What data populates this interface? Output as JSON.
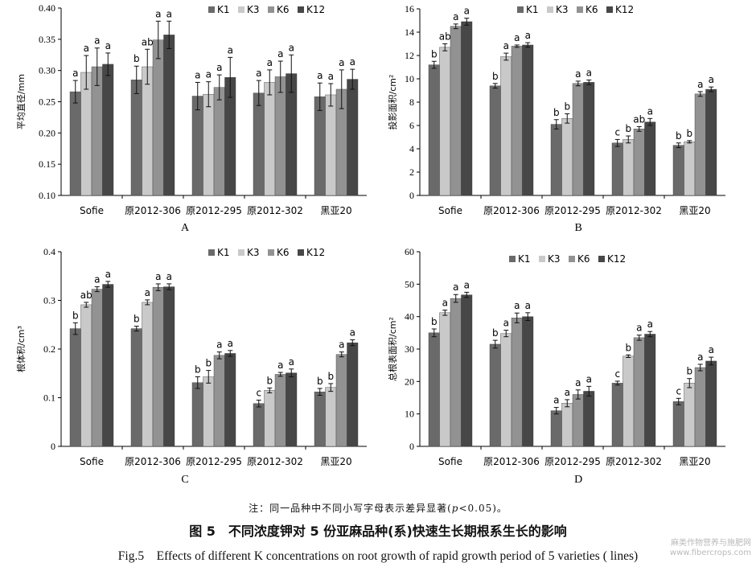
{
  "categories": [
    "Sofie",
    "原2012-306",
    "原2012-295",
    "原2012-302",
    "黑亚20"
  ],
  "legend": [
    "K1",
    "K3",
    "K6",
    "K12"
  ],
  "colors": [
    "#6a6a6a",
    "#c9c9c9",
    "#929292",
    "#474747"
  ],
  "chart_data": [
    {
      "type": "bar",
      "panel_label": "A",
      "ylabel": "平均直径/mm",
      "ylim": [
        0.1,
        0.4
      ],
      "yticks": [
        "0.10",
        "0.15",
        "0.20",
        "0.25",
        "0.30",
        "0.35",
        "0.40"
      ],
      "categories": [
        "Sofie",
        "原2012-306",
        "原2012-295",
        "原2012-302",
        "黑亚20"
      ],
      "series": [
        {
          "name": "K1",
          "values": [
            0.266,
            0.285,
            0.259,
            0.264,
            0.258
          ],
          "errors": [
            0.018,
            0.022,
            0.022,
            0.02,
            0.022
          ],
          "letters": [
            "a",
            "b",
            "a",
            "a",
            "a"
          ]
        },
        {
          "name": "K3",
          "values": [
            0.297,
            0.306,
            0.262,
            0.281,
            0.261
          ],
          "errors": [
            0.027,
            0.028,
            0.02,
            0.02,
            0.018
          ],
          "letters": [
            "a",
            "ab",
            "a",
            "a",
            "a"
          ]
        },
        {
          "name": "K6",
          "values": [
            0.306,
            0.349,
            0.273,
            0.29,
            0.27
          ],
          "errors": [
            0.03,
            0.03,
            0.02,
            0.025,
            0.031
          ],
          "letters": [
            "a",
            "a",
            "a",
            "a",
            "a"
          ]
        },
        {
          "name": "K12",
          "values": [
            0.31,
            0.357,
            0.289,
            0.295,
            0.286
          ],
          "errors": [
            0.018,
            0.022,
            0.032,
            0.03,
            0.016
          ],
          "letters": [
            "a",
            "a",
            "a",
            "a",
            "a"
          ]
        }
      ]
    },
    {
      "type": "bar",
      "panel_label": "B",
      "ylabel": "投影面积/cm²",
      "ylim": [
        0,
        16
      ],
      "yticks": [
        "0",
        "2",
        "4",
        "6",
        "8",
        "10",
        "12",
        "14",
        "16"
      ],
      "categories": [
        "Sofie",
        "原2012-306",
        "原2012-295",
        "原2012-302",
        "黑亚20"
      ],
      "series": [
        {
          "name": "K1",
          "values": [
            11.2,
            9.4,
            6.1,
            4.5,
            4.3
          ],
          "errors": [
            0.3,
            0.2,
            0.4,
            0.3,
            0.2
          ],
          "letters": [
            "b",
            "b",
            "b",
            "c",
            "b"
          ]
        },
        {
          "name": "K3",
          "values": [
            12.7,
            11.9,
            6.6,
            4.8,
            4.6
          ],
          "errors": [
            0.3,
            0.3,
            0.4,
            0.3,
            0.1
          ],
          "letters": [
            "ab",
            "a",
            "b",
            "b",
            "b"
          ]
        },
        {
          "name": "K6",
          "values": [
            14.5,
            12.8,
            9.6,
            5.7,
            8.7
          ],
          "errors": [
            0.2,
            0.1,
            0.2,
            0.2,
            0.2
          ],
          "letters": [
            "a",
            "a",
            "a",
            "ab",
            "a"
          ]
        },
        {
          "name": "K12",
          "values": [
            14.9,
            12.9,
            9.7,
            6.3,
            9.1
          ],
          "errors": [
            0.3,
            0.2,
            0.2,
            0.3,
            0.2
          ],
          "letters": [
            "a",
            "a",
            "a",
            "a",
            "a"
          ]
        }
      ]
    },
    {
      "type": "bar",
      "panel_label": "C",
      "ylabel": "根体积/cm³",
      "ylim": [
        0,
        0.4
      ],
      "yticks": [
        "0",
        "0.1",
        "0.2",
        "0.3",
        "0.4"
      ],
      "categories": [
        "Sofie",
        "原2012-306",
        "原2012-295",
        "原2012-302",
        "黑亚20"
      ],
      "series": [
        {
          "name": "K1",
          "values": [
            0.242,
            0.242,
            0.131,
            0.088,
            0.112
          ],
          "errors": [
            0.012,
            0.005,
            0.012,
            0.007,
            0.007
          ],
          "letters": [
            "b",
            "b",
            "b",
            "c",
            "b"
          ]
        },
        {
          "name": "K3",
          "values": [
            0.291,
            0.296,
            0.143,
            0.115,
            0.121
          ],
          "errors": [
            0.005,
            0.005,
            0.013,
            0.005,
            0.008
          ],
          "letters": [
            "ab",
            "a",
            "b",
            "b",
            "b"
          ]
        },
        {
          "name": "K6",
          "values": [
            0.323,
            0.327,
            0.187,
            0.148,
            0.189
          ],
          "errors": [
            0.005,
            0.007,
            0.007,
            0.004,
            0.005
          ],
          "letters": [
            "a",
            "a",
            "a",
            "a",
            "a"
          ]
        },
        {
          "name": "K12",
          "values": [
            0.333,
            0.328,
            0.191,
            0.151,
            0.213
          ],
          "errors": [
            0.006,
            0.006,
            0.006,
            0.008,
            0.006
          ],
          "letters": [
            "a",
            "a",
            "a",
            "a",
            "a"
          ]
        }
      ]
    },
    {
      "type": "bar",
      "panel_label": "D",
      "ylabel": "总根表面积/cm²",
      "ylim": [
        0,
        60
      ],
      "yticks": [
        "0",
        "10",
        "20",
        "30",
        "40",
        "50",
        "60"
      ],
      "categories": [
        "Sofie",
        "原2012-306",
        "原2012-295",
        "原2012-302",
        "黑亚20"
      ],
      "series": [
        {
          "name": "K1",
          "values": [
            35.0,
            31.5,
            11.0,
            19.5,
            13.8
          ],
          "errors": [
            1.2,
            1.2,
            1.0,
            0.6,
            1.0
          ],
          "letters": [
            "b",
            "b",
            "a",
            "c",
            "c"
          ]
        },
        {
          "name": "K3",
          "values": [
            41.2,
            34.8,
            13.3,
            27.8,
            19.5
          ],
          "errors": [
            0.8,
            1.0,
            1.1,
            0.4,
            1.4
          ],
          "letters": [
            "a",
            "a",
            "a",
            "b",
            "b"
          ]
        },
        {
          "name": "K6",
          "values": [
            45.6,
            39.6,
            16.0,
            33.5,
            24.3
          ],
          "errors": [
            1.2,
            1.5,
            1.4,
            0.8,
            1.0
          ],
          "letters": [
            "a",
            "a",
            "a",
            "a",
            "a"
          ]
        },
        {
          "name": "K12",
          "values": [
            46.7,
            40.0,
            17.0,
            34.6,
            26.3
          ],
          "errors": [
            0.8,
            1.2,
            1.5,
            0.8,
            1.2
          ],
          "letters": [
            "a",
            "a",
            "a",
            "a",
            "a"
          ]
        }
      ]
    }
  ],
  "note": {
    "prefix": "注：同一品种中不同小写字母表示差异显著(",
    "p": "p",
    "suffix": "<0.05)。"
  },
  "caption_zh": "图 5　不同浓度钾对 5 份亚麻品种(系)快速生长期根系生长的影响",
  "caption_en": "Fig.5　Effects of different K concentrations on root growth of rapid growth period of 5 varieties ( lines)",
  "watermark": [
    "麻类作物营养与施肥网",
    "www.fibercrops.com"
  ]
}
